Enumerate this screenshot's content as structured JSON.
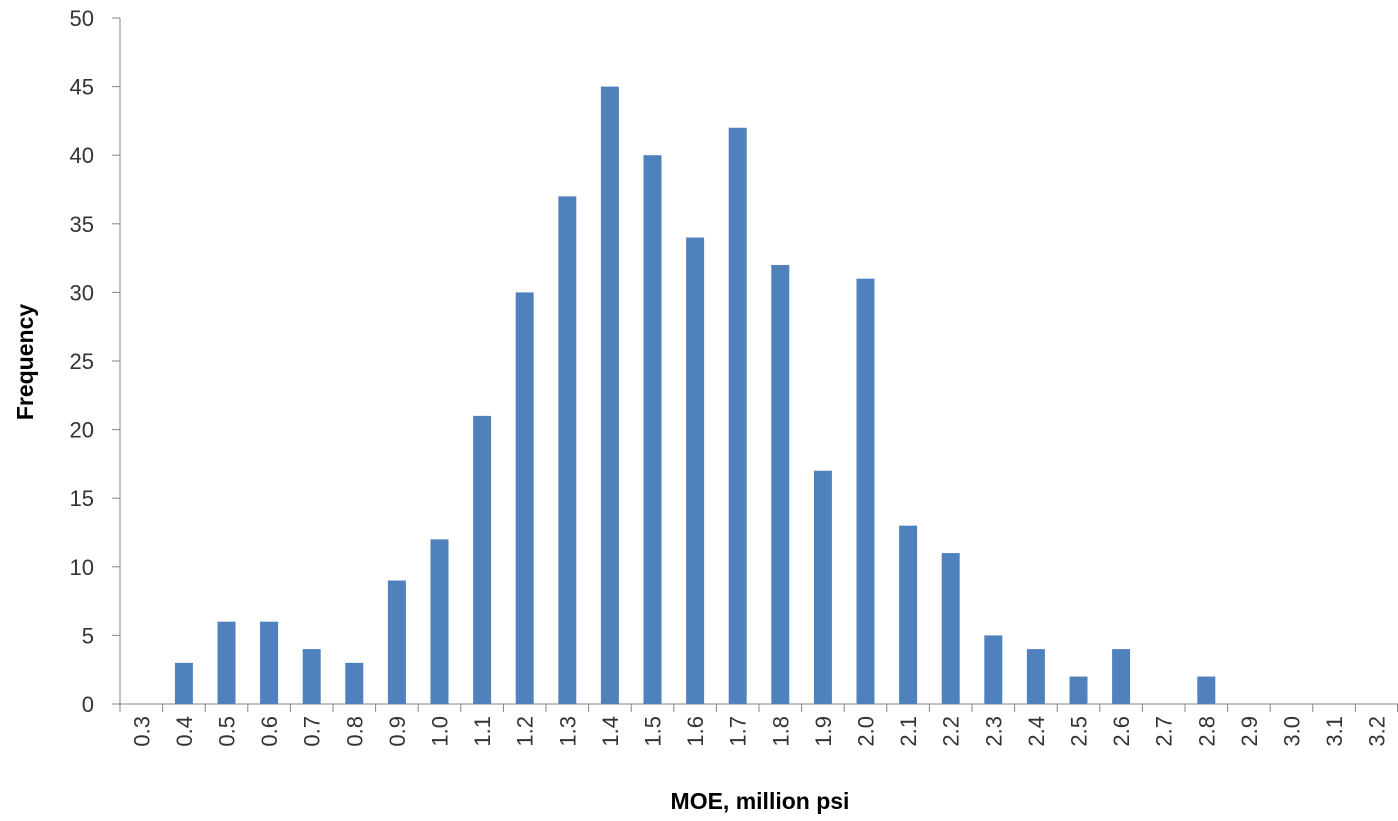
{
  "chart_data": {
    "type": "bar",
    "x_label": "MOE, million psi",
    "y_label": "Frequency",
    "categories": [
      "0.3",
      "0.4",
      "0.5",
      "0.6",
      "0.7",
      "0.8",
      "0.9",
      "1.0",
      "1.1",
      "1.2",
      "1.3",
      "1.4",
      "1.5",
      "1.6",
      "1.7",
      "1.8",
      "1.9",
      "2.0",
      "2.1",
      "2.2",
      "2.3",
      "2.4",
      "2.5",
      "2.6",
      "2.7",
      "2.8",
      "2.9",
      "3.0",
      "3.1",
      "3.2"
    ],
    "values": [
      0,
      3,
      6,
      6,
      4,
      3,
      9,
      12,
      21,
      30,
      37,
      45,
      40,
      34,
      42,
      32,
      17,
      31,
      13,
      11,
      5,
      4,
      2,
      4,
      0,
      2,
      0,
      0,
      0,
      0
    ],
    "color": "#4f81bd",
    "ylim": [
      0,
      50
    ],
    "yticks": [
      0,
      5,
      10,
      15,
      20,
      25,
      30,
      35,
      40,
      45,
      50
    ],
    "grid": false
  }
}
